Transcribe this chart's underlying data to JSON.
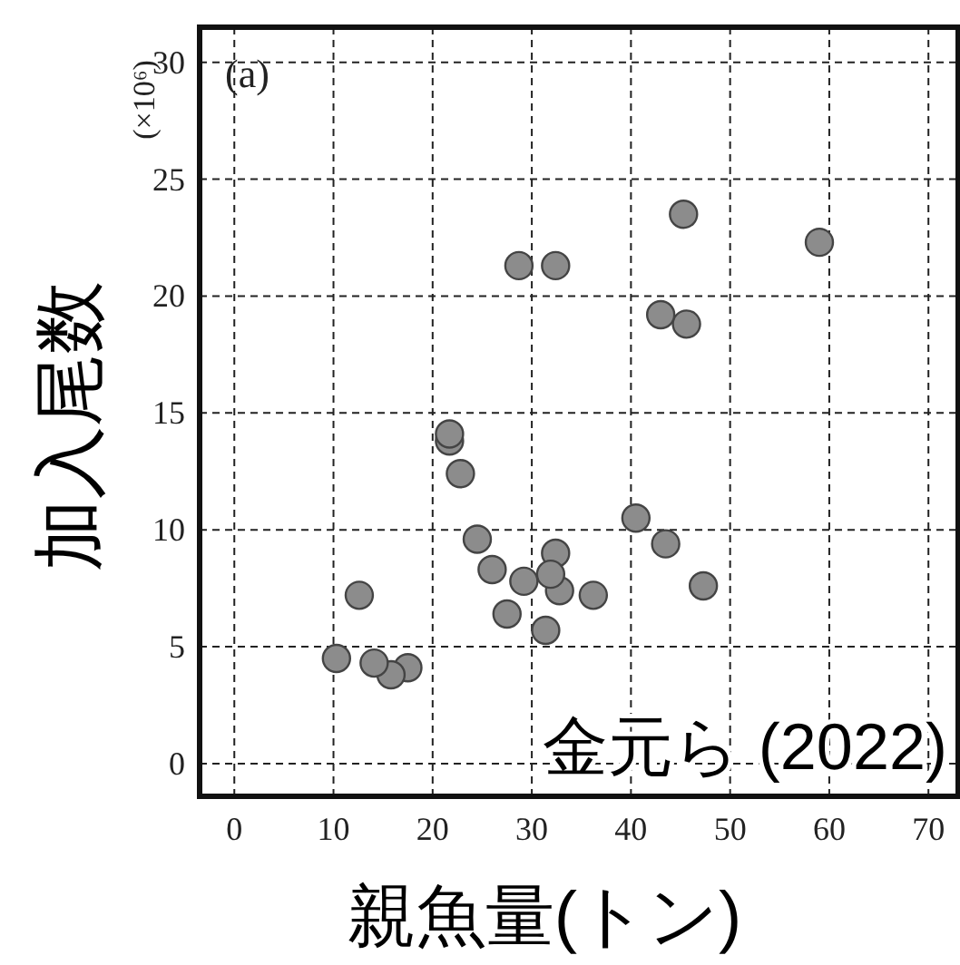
{
  "chart_data": {
    "type": "scatter",
    "xlabel": "親魚量(トン)",
    "ylabel": "加入尾数",
    "annotations": [
      "(×10⁶)",
      "(a)",
      "金元ら (2022)"
    ],
    "x": [
      10.3,
      12.6,
      14.1,
      15.8,
      17.5,
      21.7,
      21.7,
      22.8,
      24.5,
      26.0,
      27.5,
      29.2,
      31.4,
      31.9,
      32.4,
      32.8,
      36.2,
      40.5,
      43.5,
      47.3,
      28.7,
      32.4,
      45.3,
      59.0,
      43.0,
      45.6
    ],
    "values": [
      4.5,
      7.2,
      4.3,
      3.8,
      4.1,
      14.1,
      13.8,
      12.4,
      9.6,
      8.3,
      6.4,
      7.8,
      5.7,
      8.1,
      9.0,
      7.4,
      7.2,
      10.5,
      9.4,
      7.6,
      21.3,
      21.3,
      23.5,
      22.3,
      19.2,
      18.8
    ],
    "color": "#8c8c8c",
    "marker": "circle",
    "grid": true,
    "xlim": [
      -3.5,
      73
    ],
    "ylim": [
      -1.4,
      31.5
    ],
    "xticks": [
      0,
      10,
      20,
      30,
      40,
      50,
      60,
      70
    ],
    "yticks": [
      0,
      5,
      10,
      15,
      20,
      25,
      30
    ]
  }
}
